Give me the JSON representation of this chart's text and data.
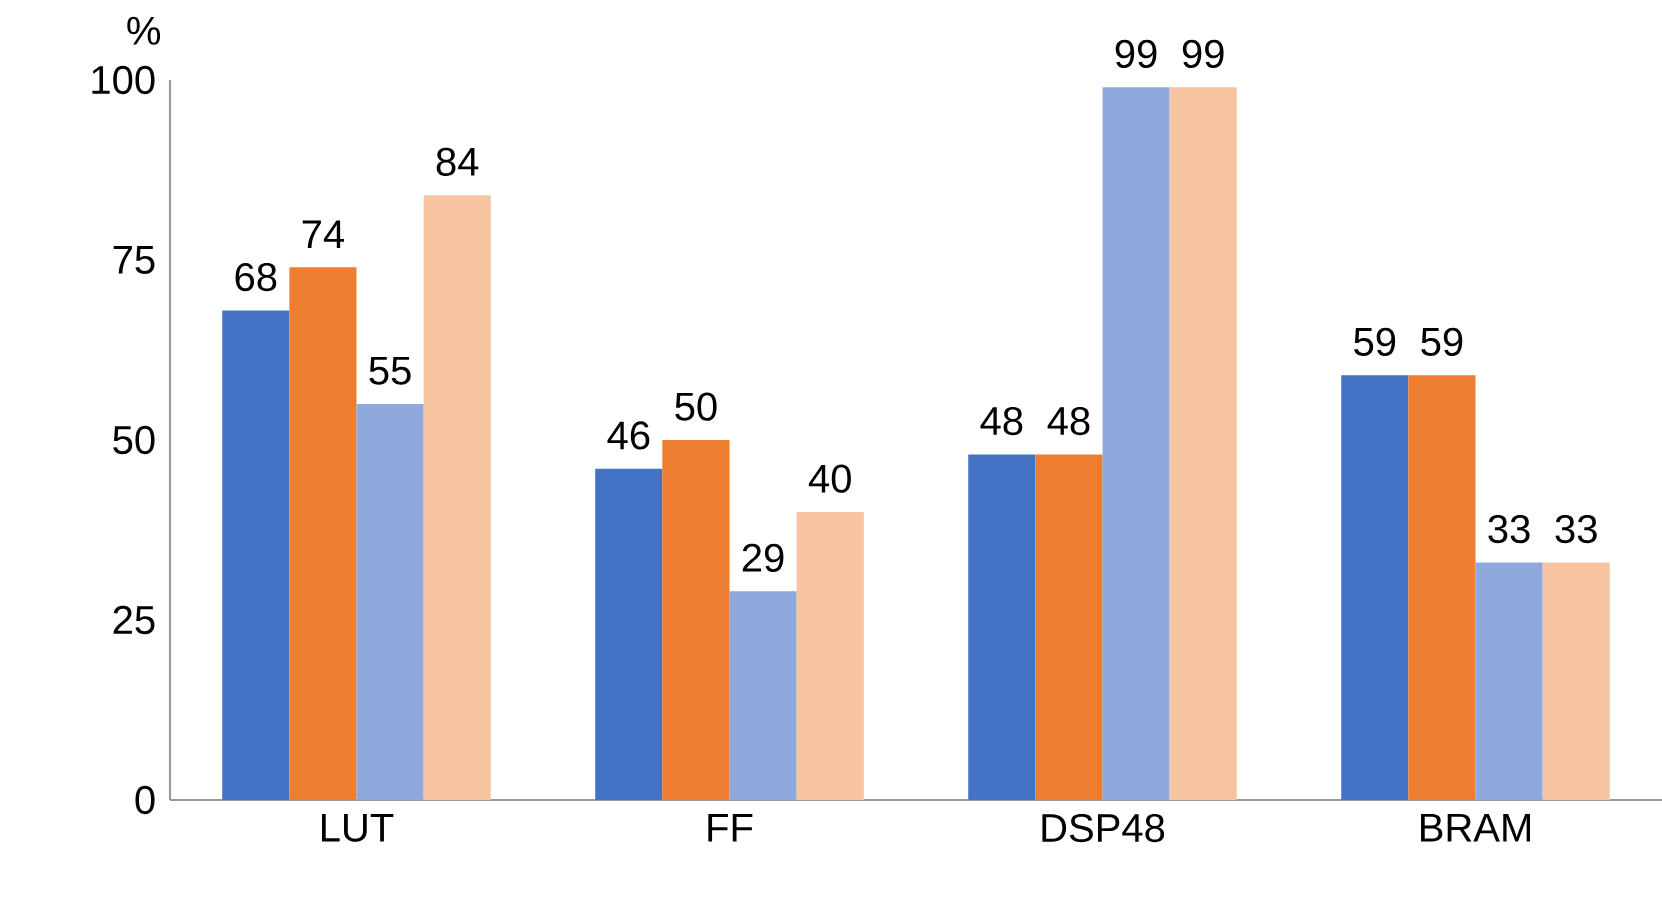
{
  "chart_data": {
    "type": "bar",
    "ylabel": "%",
    "categories": [
      "LUT",
      "FF",
      "DSP48",
      "BRAM"
    ],
    "series": [
      {
        "color": "#4472c4",
        "values": [
          68,
          46,
          48,
          59
        ]
      },
      {
        "color": "#ed7d31",
        "values": [
          74,
          50,
          48,
          59
        ]
      },
      {
        "color": "#8fa9dc",
        "values": [
          55,
          29,
          99,
          33
        ]
      },
      {
        "color": "#f6c4a1",
        "values": [
          84,
          40,
          99,
          33
        ]
      }
    ],
    "ylim": [
      0,
      100
    ],
    "yticks": [
      0,
      25,
      50,
      75,
      100
    ],
    "data_labels": true
  }
}
